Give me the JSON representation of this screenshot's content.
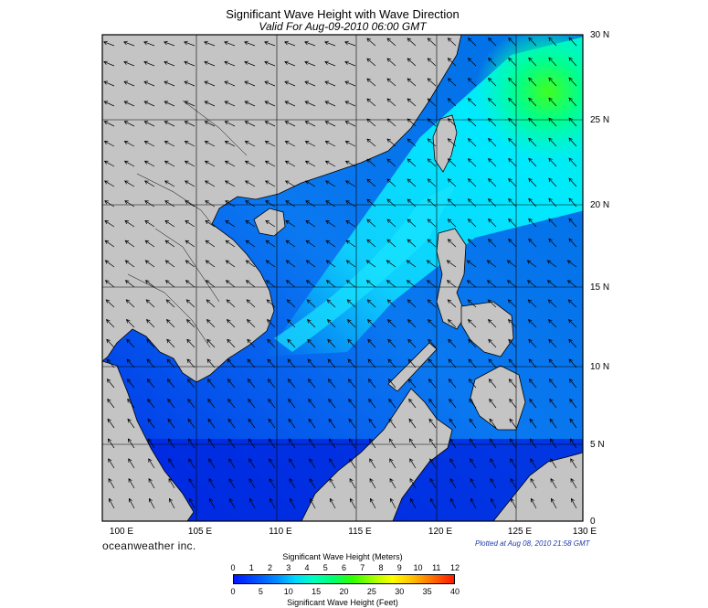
{
  "title": "Significant Wave Height with Wave Direction",
  "subtitle": "Valid For Aug-09-2010 06:00 GMT",
  "brand": "oceanweather inc.",
  "plotted": "Plotted at Aug 08, 2010 21:58 GMT",
  "lat_labels": [
    "30 N",
    "25 N",
    "20 N",
    "15 N",
    "10 N",
    "5 N",
    "0"
  ],
  "lon_labels": [
    "100 E",
    "105 E",
    "110 E",
    "115 E",
    "120 E",
    "125 E",
    "130 E"
  ],
  "colorbar": {
    "meters_title": "Significant Wave Height (Meters)",
    "feet_title": "Significant Wave Height (Feet)",
    "meters_ticks": [
      "0",
      "1",
      "2",
      "3",
      "4",
      "5",
      "6",
      "7",
      "8",
      "9",
      "10",
      "11",
      "12"
    ],
    "feet_ticks": [
      "0",
      "5",
      "10",
      "15",
      "20",
      "25",
      "30",
      "35",
      "40"
    ]
  },
  "colors": {
    "land": "#c4c4c4",
    "coast": "#000000",
    "grid": "#000000"
  }
}
